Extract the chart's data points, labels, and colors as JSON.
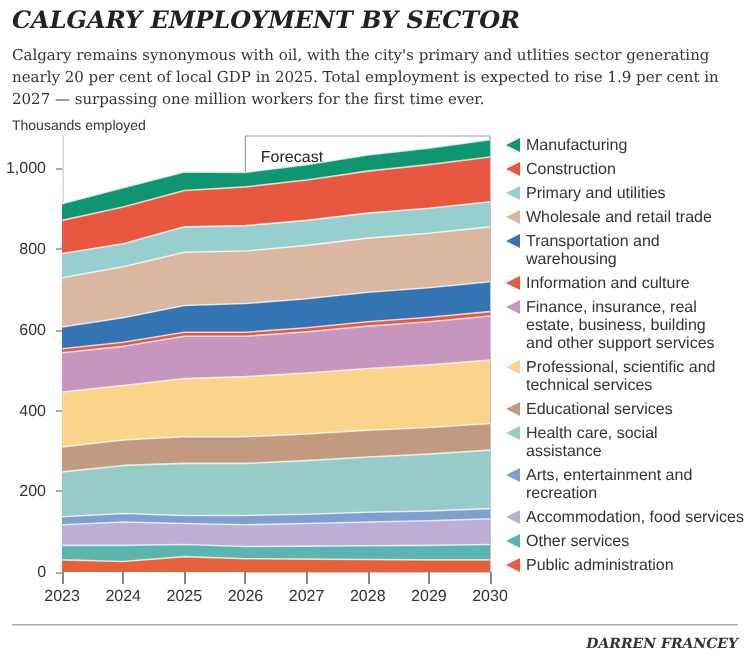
{
  "chart_data": {
    "type": "area",
    "stacked": true,
    "title": "CALGARY EMPLOYMENT BY SECTOR",
    "subtitle": "Calgary remains synonymous with oil, with the city's primary and utlities sector generating nearly 20 per cent of local GDP in 2025. Total employment is expected to rise 1.9 per cent in 2027 — surpassing one million workers for the first time ever.",
    "ylabel": "Thousands employed",
    "annotations": [
      "DARREN FRANCEY"
    ],
    "categories": [
      "2023",
      "2024",
      "2025",
      "2026",
      "2027",
      "2028",
      "2029",
      "2030"
    ],
    "ylim": [
      0,
      1080
    ],
    "yticks": [
      0,
      200,
      400,
      600,
      800,
      {
        "value": 1000,
        "label": "1,000"
      }
    ],
    "grid": false,
    "legend": "right",
    "bands": [
      {
        "axis": "x",
        "from": "2026",
        "to": "2030",
        "label": "Forecast"
      }
    ],
    "series": [
      {
        "name": "Public administration",
        "color": "#e8603a",
        "values": [
          30,
          26,
          38,
          33,
          32,
          31,
          30,
          30
        ]
      },
      {
        "name": "Other services",
        "color": "#5ab5b0",
        "values": [
          36,
          40,
          30,
          30,
          32,
          34,
          36,
          38
        ]
      },
      {
        "name": "Accommodation, food services",
        "color": "#bdaed6",
        "values": [
          51,
          58,
          52,
          54,
          56,
          59,
          61,
          64
        ]
      },
      {
        "name": "Arts, entertainment and recreation",
        "color": "#7f9fd0",
        "values": [
          20,
          21,
          20,
          23,
          23,
          24,
          24,
          25
        ]
      },
      {
        "name": "Health care, social assistance",
        "color": "#96cbc8",
        "values": [
          111,
          119,
          129,
          129,
          133,
          137,
          141,
          145
        ]
      },
      {
        "name": "Educational services",
        "color": "#c29a80",
        "values": [
          62,
          63,
          66,
          66,
          66,
          66,
          66,
          66
        ]
      },
      {
        "name": "Professional, scientific and technical services",
        "color": "#fbd48c",
        "values": [
          136,
          135,
          144,
          149,
          151,
          153,
          155,
          157
        ]
      },
      {
        "name": "Finance, insurance, real estate, business, building and other support services",
        "color": "#c795be",
        "values": [
          97,
          97,
          105,
          100,
          102,
          105,
          107,
          109
        ]
      },
      {
        "name": "Information and culture",
        "color": "#e8573f",
        "values": [
          10,
          10,
          10,
          10,
          10,
          11,
          11,
          11
        ]
      },
      {
        "name": "Transportation and warehousing",
        "color": "#3574b3",
        "values": [
          54,
          61,
          66,
          71,
          72,
          73,
          73,
          74
        ]
      },
      {
        "name": "Wholesale and retail trade",
        "color": "#d9b7a0",
        "values": [
          122,
          126,
          132,
          130,
          132,
          134,
          135,
          136
        ]
      },
      {
        "name": "Primary and utilities",
        "color": "#96cfcd",
        "values": [
          60,
          57,
          63,
          63,
          62,
          62,
          62,
          62
        ]
      },
      {
        "name": "Construction",
        "color": "#e8573f",
        "values": [
          82,
          91,
          90,
          96,
          100,
          104,
          108,
          111
        ]
      },
      {
        "name": "Manufacturing",
        "color": "#0e9670",
        "values": [
          41,
          48,
          46,
          36,
          38,
          40,
          41,
          43
        ]
      }
    ]
  }
}
